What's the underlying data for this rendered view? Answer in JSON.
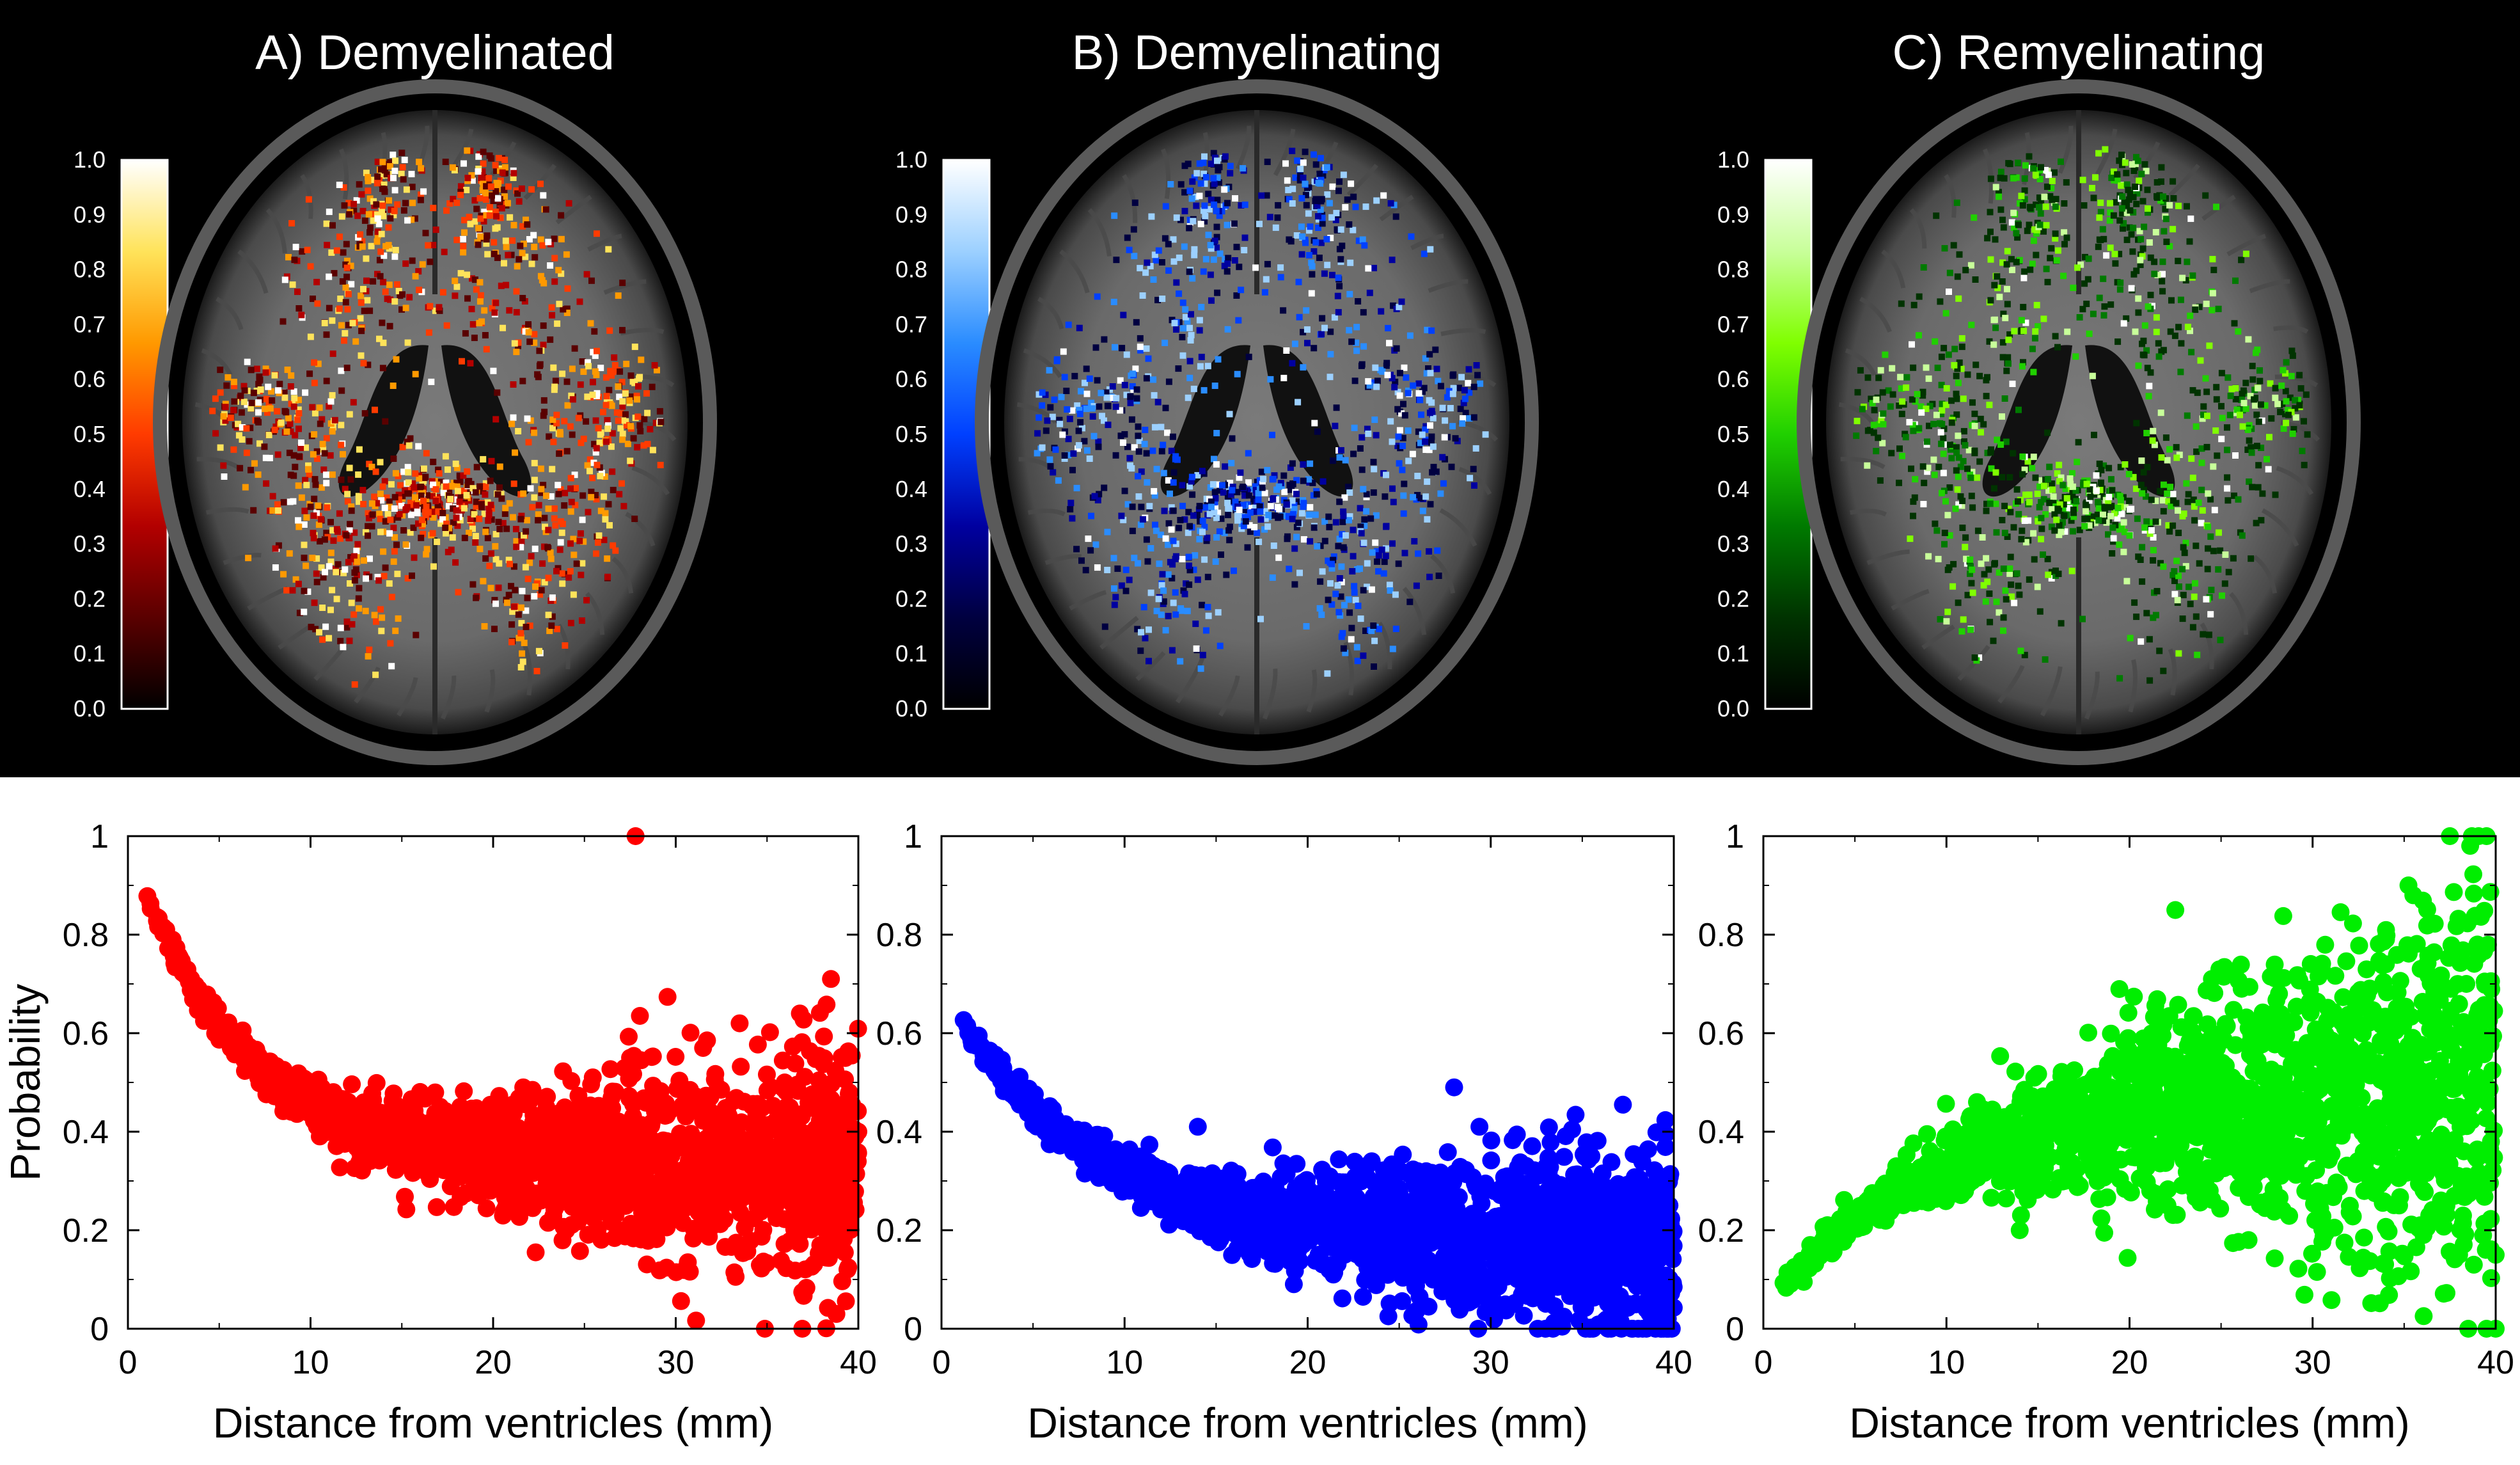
{
  "panels": [
    {
      "id": "A",
      "title": "A) Demyelinated",
      "palette": "hot",
      "stops": [
        "#000000",
        "#5a0000",
        "#b30000",
        "#ff3b00",
        "#ff9900",
        "#ffe35a",
        "#ffffff"
      ]
    },
    {
      "id": "B",
      "title": "B) Demyelinating",
      "palette": "blue",
      "stops": [
        "#000000",
        "#000040",
        "#0000a0",
        "#0040ff",
        "#2a8cff",
        "#9cd0ff",
        "#ffffff"
      ]
    },
    {
      "id": "C",
      "title": "C) Remyelinating",
      "palette": "green",
      "stops": [
        "#000000",
        "#003300",
        "#007a00",
        "#20d000",
        "#80ff00",
        "#c8ff9a",
        "#ffffff"
      ]
    }
  ],
  "colorbar_ticks": [
    "0.0",
    "0.1",
    "0.2",
    "0.3",
    "0.4",
    "0.5",
    "0.6",
    "0.7",
    "0.8",
    "0.9",
    "1.0"
  ],
  "chart_data": [
    {
      "type": "scatter",
      "series_color": "#ff0000",
      "xlabel": "Distance from ventricles (mm)",
      "ylabel": "Probability",
      "xlim": [
        0,
        40
      ],
      "ylim": [
        0,
        1
      ],
      "xticks": [
        "0",
        "10",
        "20",
        "30",
        "40"
      ],
      "yticks": [
        "0",
        "0.2",
        "0.4",
        "0.6",
        "0.8",
        "1"
      ],
      "trend": {
        "start": 0.89,
        "end": 0.33,
        "decay": 6,
        "spread_growth": 0.12
      },
      "outliers": [
        [
          27.8,
          1.0
        ],
        [
          38.5,
          0.71
        ],
        [
          36.8,
          0.64
        ],
        [
          33.5,
          0.62
        ],
        [
          31.5,
          0.57
        ],
        [
          27.5,
          0.55
        ],
        [
          39.5,
          0.48
        ],
        [
          40,
          0.4
        ],
        [
          38.8,
          0.03
        ],
        [
          24,
          0.2
        ],
        [
          31.5,
          0.22
        ]
      ]
    },
    {
      "type": "scatter",
      "series_color": "#0000ff",
      "xlabel": "Distance from ventricles (mm)",
      "ylabel": "",
      "xlim": [
        0,
        40
      ],
      "ylim": [
        0,
        1
      ],
      "xticks": [
        "0",
        "10",
        "20",
        "30",
        "40"
      ],
      "yticks": [
        "0",
        "0.2",
        "0.4",
        "0.6",
        "0.8",
        "1"
      ],
      "trend": {
        "start": 0.63,
        "end": 0.17,
        "decay": 8,
        "spread_growth": 0.1
      },
      "outliers": [
        [
          28,
          0.49
        ],
        [
          14,
          0.41
        ],
        [
          14,
          0.22
        ],
        [
          35.5,
          0.35
        ],
        [
          33,
          0.0
        ],
        [
          38.5,
          0.0
        ],
        [
          23.5,
          0.34
        ],
        [
          26,
          0.32
        ]
      ]
    },
    {
      "type": "scatter",
      "series_color": "#00ee00",
      "xlabel": "Distance from ventricles (mm)",
      "ylabel": "",
      "xlim": [
        0,
        40
      ],
      "ylim": [
        0,
        1
      ],
      "xticks": [
        "0",
        "10",
        "20",
        "30",
        "40"
      ],
      "yticks": [
        "0",
        "0.2",
        "0.4",
        "0.6",
        "0.8",
        "1"
      ],
      "trend": {
        "start": 0.08,
        "end": 0.48,
        "decay": 9,
        "spread_growth": 0.2
      },
      "outliers": [
        [
          37.5,
          1.0
        ],
        [
          38.7,
          1.0
        ],
        [
          39.5,
          1.0
        ],
        [
          35.5,
          0.88
        ],
        [
          22.5,
          0.85
        ],
        [
          24.5,
          0.71
        ],
        [
          34,
          0.74
        ],
        [
          30.5,
          0.73
        ],
        [
          26.5,
          0.18
        ],
        [
          14,
          0.2
        ],
        [
          21.5,
          0.26
        ],
        [
          39.5,
          0.0
        ],
        [
          38.5,
          0.0
        ],
        [
          40,
          0.0
        ],
        [
          38,
          0.15
        ],
        [
          40,
          0.15
        ],
        [
          39,
          0.78
        ]
      ]
    }
  ]
}
